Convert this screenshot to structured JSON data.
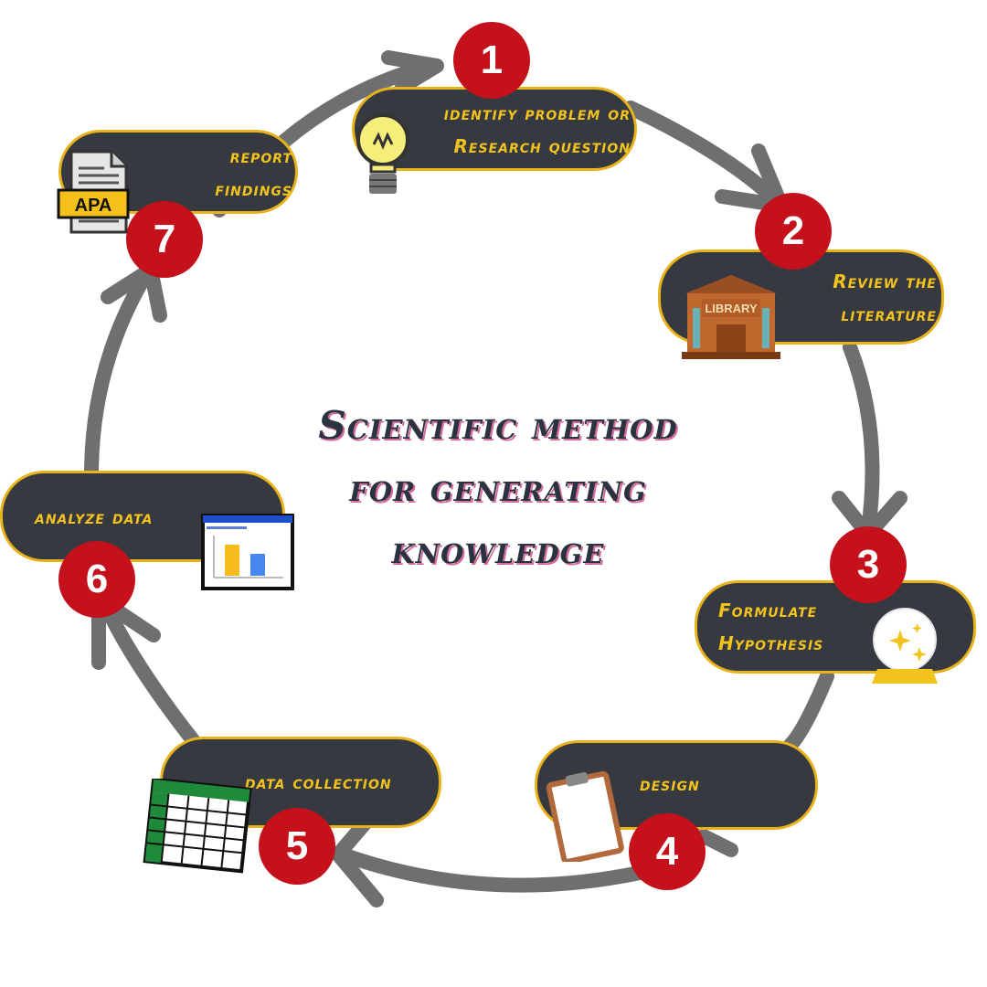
{
  "title": {
    "line1": "Scientific method",
    "line2": "for generating",
    "line3": "knowledge"
  },
  "colors": {
    "pill_bg": "#363a40",
    "pill_border": "#e8b31a",
    "pill_text": "#f2c31c",
    "badge": "#c4111b",
    "arrow": "#6e6f71",
    "title": "#2a3440"
  },
  "steps": [
    {
      "number": "1",
      "lines": [
        "identify problem or",
        "Research question"
      ],
      "icon": "lightbulb-icon"
    },
    {
      "number": "2",
      "lines": [
        "Review the",
        "literature"
      ],
      "icon": "library-icon",
      "icon_text": "LIBRARY"
    },
    {
      "number": "3",
      "lines": [
        "Formulate",
        "Hypothesis"
      ],
      "icon": "crystal-ball-icon"
    },
    {
      "number": "4",
      "lines": [
        "design"
      ],
      "icon": "clipboard-icon"
    },
    {
      "number": "5",
      "lines": [
        "data collection"
      ],
      "icon": "spreadsheet-icon"
    },
    {
      "number": "6",
      "lines": [
        "analyze data"
      ],
      "icon": "bar-chart-window-icon"
    },
    {
      "number": "7",
      "lines": [
        "report",
        "findings"
      ],
      "icon": "apa-document-icon",
      "icon_text": "APA"
    }
  ]
}
